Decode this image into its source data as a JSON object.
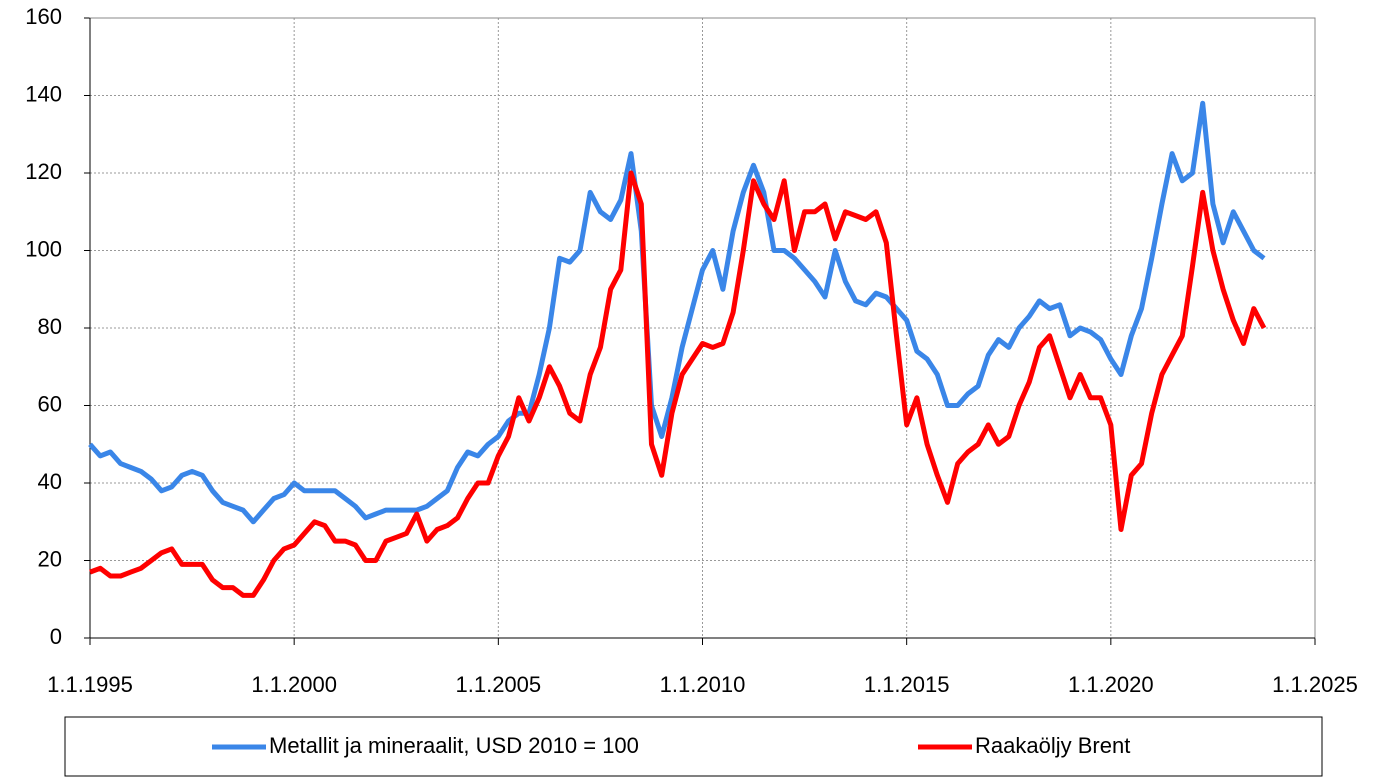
{
  "chart_data": {
    "type": "line",
    "x": [
      1995,
      1995.25,
      1995.5,
      1995.75,
      1996,
      1996.25,
      1996.5,
      1996.75,
      1997,
      1997.25,
      1997.5,
      1997.75,
      1998,
      1998.25,
      1998.5,
      1998.75,
      1999,
      1999.25,
      1999.5,
      1999.75,
      2000,
      2000.25,
      2000.5,
      2000.75,
      2001,
      2001.25,
      2001.5,
      2001.75,
      2002,
      2002.25,
      2002.5,
      2002.75,
      2003,
      2003.25,
      2003.5,
      2003.75,
      2004,
      2004.25,
      2004.5,
      2004.75,
      2005,
      2005.25,
      2005.5,
      2005.75,
      2006,
      2006.25,
      2006.5,
      2006.75,
      2007,
      2007.25,
      2007.5,
      2007.75,
      2008,
      2008.25,
      2008.5,
      2008.75,
      2009,
      2009.25,
      2009.5,
      2009.75,
      2010,
      2010.25,
      2010.5,
      2010.75,
      2011,
      2011.25,
      2011.5,
      2011.75,
      2012,
      2012.25,
      2012.5,
      2012.75,
      2013,
      2013.25,
      2013.5,
      2013.75,
      2014,
      2014.25,
      2014.5,
      2014.75,
      2015,
      2015.25,
      2015.5,
      2015.75,
      2016,
      2016.25,
      2016.5,
      2016.75,
      2017,
      2017.25,
      2017.5,
      2017.75,
      2018,
      2018.25,
      2018.5,
      2018.75,
      2019,
      2019.25,
      2019.5,
      2019.75,
      2020,
      2020.25,
      2020.5,
      2020.75,
      2021,
      2021.25,
      2021.5,
      2021.75,
      2022,
      2022.25,
      2022.5,
      2022.75,
      2023,
      2023.25,
      2023.5,
      2023.75
    ],
    "series": [
      {
        "name": "Metallit ja mineraalit, USD 2010 = 100",
        "color": "#3a86e8",
        "values": [
          50,
          47,
          48,
          45,
          44,
          43,
          41,
          38,
          39,
          42,
          43,
          42,
          38,
          35,
          34,
          33,
          30,
          33,
          36,
          37,
          40,
          38,
          38,
          38,
          38,
          36,
          34,
          31,
          32,
          33,
          33,
          33,
          33,
          34,
          36,
          38,
          44,
          48,
          47,
          50,
          52,
          56,
          58,
          58,
          68,
          80,
          98,
          97,
          100,
          115,
          110,
          108,
          113,
          125,
          105,
          60,
          52,
          62,
          75,
          85,
          95,
          100,
          90,
          105,
          115,
          122,
          115,
          100,
          100,
          98,
          95,
          92,
          88,
          100,
          92,
          87,
          86,
          89,
          88,
          85,
          82,
          74,
          72,
          68,
          60,
          60,
          63,
          65,
          73,
          77,
          75,
          80,
          83,
          87,
          85,
          86,
          78,
          80,
          79,
          77,
          72,
          68,
          78,
          85,
          98,
          112,
          125,
          118,
          120,
          138,
          112,
          102,
          110,
          105,
          100,
          98
        ]
      },
      {
        "name": "Raakaöljy Brent",
        "color": "#ff0000",
        "values": [
          17,
          18,
          16,
          16,
          17,
          18,
          20,
          22,
          23,
          19,
          19,
          19,
          15,
          13,
          13,
          11,
          11,
          15,
          20,
          23,
          24,
          27,
          30,
          29,
          25,
          25,
          24,
          20,
          20,
          25,
          26,
          27,
          32,
          25,
          28,
          29,
          31,
          36,
          40,
          40,
          47,
          52,
          62,
          56,
          62,
          70,
          65,
          58,
          56,
          68,
          75,
          90,
          95,
          120,
          112,
          50,
          42,
          58,
          68,
          72,
          76,
          75,
          76,
          84,
          100,
          118,
          112,
          108,
          118,
          100,
          110,
          110,
          112,
          103,
          110,
          109,
          108,
          110,
          102,
          78,
          55,
          62,
          50,
          42,
          35,
          45,
          48,
          50,
          55,
          50,
          52,
          60,
          66,
          75,
          78,
          70,
          62,
          68,
          62,
          62,
          55,
          28,
          42,
          45,
          58,
          68,
          73,
          78,
          96,
          115,
          100,
          90,
          82,
          76,
          85,
          80
        ]
      }
    ],
    "xlim": [
      1995,
      2025
    ],
    "xticks": [
      {
        "value": 1995,
        "label": "1.1.1995"
      },
      {
        "value": 2000,
        "label": "1.1.2000"
      },
      {
        "value": 2005,
        "label": "1.1.2005"
      },
      {
        "value": 2010,
        "label": "1.1.2010"
      },
      {
        "value": 2015,
        "label": "1.1.2015"
      },
      {
        "value": 2020,
        "label": "1.1.2020"
      },
      {
        "value": 2025,
        "label": "1.1.2025"
      }
    ],
    "ylim": [
      0,
      160
    ],
    "yticks": [
      0,
      20,
      40,
      60,
      80,
      100,
      120,
      140,
      160
    ],
    "grid": true,
    "legend": "bottom"
  }
}
